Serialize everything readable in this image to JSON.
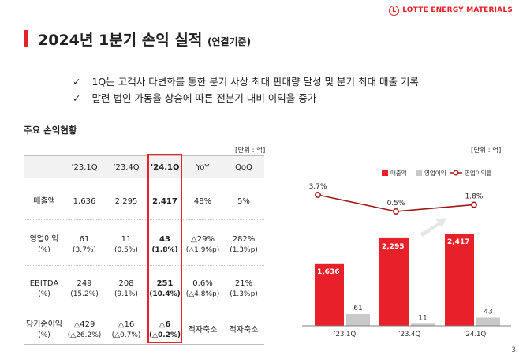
{
  "header": {
    "logo_mark": "L",
    "logo_text": "LOTTE ENERGY MATERIALS"
  },
  "title": {
    "main": "2024년 1분기 손익 실적",
    "sub": "(연결기준)"
  },
  "bullets": [
    "1Q는 고객사 다변화를 통한 분기 사상 최대 판매량 달성 및 분기 최대 매출 기록",
    "말련 법인 가동율 상승에 따른 전분기 대비 이익율 증가"
  ],
  "bullet_mark": "✓",
  "table": {
    "section_title": "주요 손익현황",
    "unit": "[단위 : 억]",
    "columns": [
      "’23.1Q",
      "’23.4Q",
      "’24.1Q",
      "YoY",
      "QoQ"
    ],
    "rows": [
      {
        "label": "매출액",
        "label_sub": "",
        "values": [
          "1,636",
          "2,295",
          "2,417",
          "48%",
          "5%"
        ],
        "subs": [
          "",
          "",
          "",
          "",
          ""
        ]
      },
      {
        "label": "영업이익",
        "label_sub": "(%)",
        "values": [
          "61",
          "11",
          "43",
          "△29%",
          "282%"
        ],
        "subs": [
          "(3.7%)",
          "(0.5%)",
          "(1.8%)",
          "(△1.9%p)",
          "(1.3%p)"
        ]
      },
      {
        "label": "EBITDA",
        "label_sub": "(%)",
        "values": [
          "249",
          "208",
          "251",
          "0.6%",
          "21%"
        ],
        "subs": [
          "(15.2%)",
          "(9.1%)",
          "(10.4%)",
          "(△4.8%p)",
          "(1.3%p)"
        ]
      },
      {
        "label": "당기순이익",
        "label_sub": "(%)",
        "values": [
          "△429",
          "△16",
          "△6",
          "적자축소",
          "적자축소"
        ],
        "subs": [
          "(△26.2%)",
          "(△0.7%)",
          "(△0.2%)",
          "",
          ""
        ]
      }
    ]
  },
  "chart_unit": "[단위 : 억]",
  "chart_data": {
    "type": "bar",
    "categories": [
      "’23.1Q",
      "’23.4Q",
      "’24.1Q"
    ],
    "series": [
      {
        "name": "매출액",
        "values": [
          1636,
          2295,
          2417
        ],
        "color": "#e8202a",
        "labels": [
          "1,636",
          "2,295",
          "2,417"
        ]
      },
      {
        "name": "영업이익",
        "values": [
          61,
          11,
          43
        ],
        "color": "#c9c9c9",
        "labels": [
          "61",
          "11",
          "43"
        ]
      }
    ],
    "line_series": {
      "name": "영업이익율",
      "values": [
        3.7,
        0.5,
        1.8
      ],
      "labels": [
        "3.7%",
        "0.5%",
        "1.8%"
      ],
      "color": "#a01818"
    },
    "legend_position": "top-right",
    "grid": false
  },
  "page_number": "3"
}
